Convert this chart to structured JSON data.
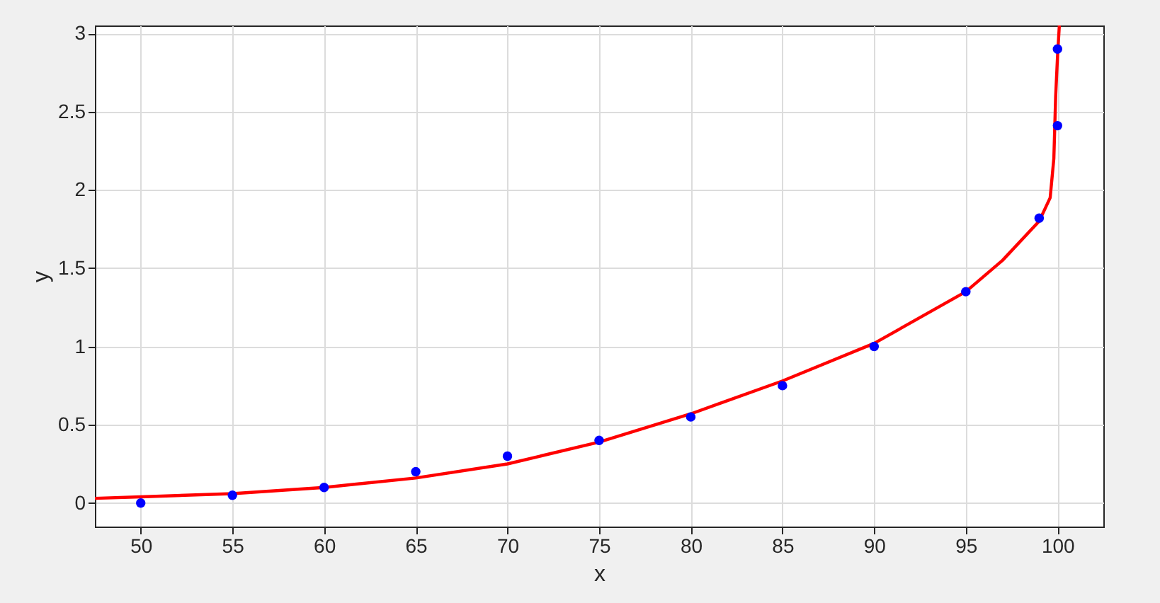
{
  "chart_data": {
    "type": "scatter",
    "xlabel": "x",
    "ylabel": "y",
    "xlim": [
      47.5,
      102.5
    ],
    "xticks": [
      50,
      55,
      60,
      65,
      70,
      75,
      80,
      85,
      90,
      95,
      100
    ],
    "ylim": [
      -0.15,
      3.05
    ],
    "yticks": [
      0,
      0.5,
      1,
      1.5,
      2,
      2.5,
      3
    ],
    "grid": true,
    "marker": "circle",
    "series": [
      {
        "color": "#0000ff",
        "x": [
          50,
          55,
          60,
          65,
          70,
          75,
          80,
          85,
          90,
          95,
          99,
          100,
          100
        ],
        "values": [
          0,
          0.05,
          0.1,
          0.2,
          0.3,
          0.4,
          0.55,
          0.75,
          1.0,
          1.35,
          1.82,
          2.41,
          2.9
        ]
      },
      {
        "type": "line",
        "color": "#ff0000",
        "line_style": "solid",
        "marker": "none",
        "x": [
          47.5,
          50,
          55,
          60,
          65,
          70,
          75,
          80,
          85,
          90,
          95,
          97,
          99,
          99.6,
          99.8,
          99.9,
          100,
          100.1
        ],
        "values": [
          0.03,
          0.04,
          0.06,
          0.1,
          0.16,
          0.25,
          0.39,
          0.57,
          0.78,
          1.02,
          1.35,
          1.55,
          1.8,
          1.95,
          2.2,
          2.6,
          2.85,
          3.05
        ]
      }
    ]
  }
}
